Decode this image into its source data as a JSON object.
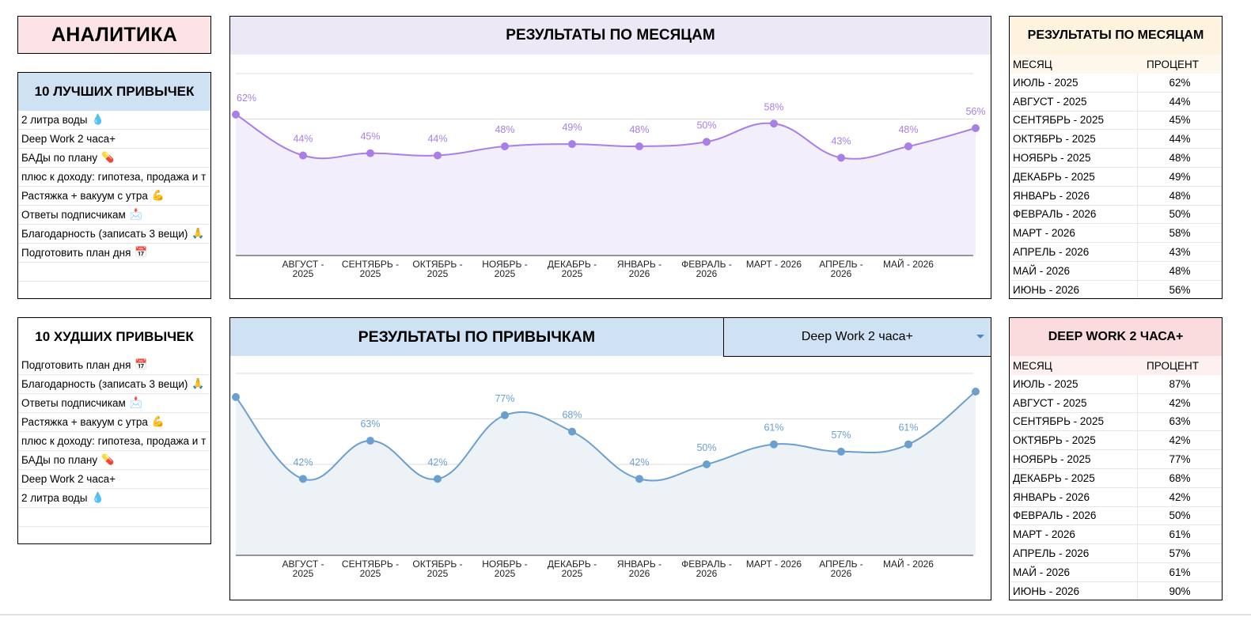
{
  "title": "АНАЛИТИКА",
  "best_habits": {
    "header": "10 ЛУЧШИХ ПРИВЫЧЕК",
    "items": [
      {
        "label": "2 литра воды",
        "emoji": "💧"
      },
      {
        "label": "Deep Work 2 часа+",
        "emoji": ""
      },
      {
        "label": "БАДы по плану",
        "emoji": "💊"
      },
      {
        "label": "плюс к доходу: гипотеза, продажа и т",
        "emoji": ""
      },
      {
        "label": "Растяжка + вакуум с утра",
        "emoji": "💪"
      },
      {
        "label": "Ответы подписчикам",
        "emoji": "📩"
      },
      {
        "label": "Благодарность (записать 3 вещи)",
        "emoji": "🙏"
      },
      {
        "label": "Подготовить план дня",
        "emoji": "📅"
      },
      {
        "label": "",
        "emoji": ""
      },
      {
        "label": "",
        "emoji": ""
      }
    ]
  },
  "worst_habits": {
    "header": "10 ХУДШИХ ПРИВЫЧЕК",
    "items": [
      {
        "label": "Подготовить план дня",
        "emoji": "📅"
      },
      {
        "label": "Благодарность (записать 3 вещи)",
        "emoji": "🙏"
      },
      {
        "label": "Ответы подписчикам",
        "emoji": "📩"
      },
      {
        "label": "Растяжка + вакуум с утра",
        "emoji": "💪"
      },
      {
        "label": "плюс к доходу: гипотеза, продажа и т",
        "emoji": ""
      },
      {
        "label": "БАДы по плану",
        "emoji": "💊"
      },
      {
        "label": "Deep Work 2 часа+",
        "emoji": ""
      },
      {
        "label": "2 литра воды",
        "emoji": "💧"
      },
      {
        "label": "",
        "emoji": ""
      },
      {
        "label": "",
        "emoji": ""
      }
    ]
  },
  "chart_data": [
    {
      "type": "area",
      "title": "РЕЗУЛЬТАТЫ ПО МЕСЯЦАМ",
      "categories": [
        "ИЮЛЬ - 2025",
        "АВГУСТ - 2025",
        "СЕНТЯБРЬ - 2025",
        "ОКТЯБРЬ - 2025",
        "НОЯБРЬ - 2025",
        "ДЕКАБРЬ - 2025",
        "ЯНВАРЬ - 2026",
        "ФЕВРАЛЬ - 2026",
        "МАРТ - 2026",
        "АПРЕЛЬ - 2026",
        "МАЙ - 2026",
        "ИЮНЬ - 2026"
      ],
      "tick_labels": [
        [
          "",
          ""
        ],
        [
          "АВГУСТ -",
          "2025"
        ],
        [
          "СЕНТЯБРЬ -",
          "2025"
        ],
        [
          "ОКТЯБРЬ -",
          "2025"
        ],
        [
          "НОЯБРЬ -",
          "2025"
        ],
        [
          "ДЕКАБРЬ -",
          "2025"
        ],
        [
          "ЯНВАРЬ -",
          "2026"
        ],
        [
          "ФЕВРАЛЬ -",
          "2026"
        ],
        [
          "МАРТ - 2026",
          ""
        ],
        [
          "АПРЕЛЬ -",
          "2026"
        ],
        [
          "МАЙ - 2026",
          ""
        ],
        [
          "",
          ""
        ]
      ],
      "values": [
        62,
        44,
        45,
        44,
        48,
        49,
        48,
        50,
        58,
        43,
        48,
        56
      ],
      "data_labels": [
        "62%",
        "44%",
        "45%",
        "44%",
        "48%",
        "49%",
        "48%",
        "50%",
        "58%",
        "43%",
        "48%",
        "56%"
      ],
      "ylim": [
        0,
        80
      ],
      "grid": true,
      "legend": "none",
      "color": "#a87fe6",
      "fill": "#f3eefc"
    },
    {
      "type": "area",
      "title": "РЕЗУЛЬТАТЫ ПО ПРИВЫЧКАМ",
      "categories": [
        "ИЮЛЬ - 2025",
        "АВГУСТ - 2025",
        "СЕНТЯБРЬ - 2025",
        "ОКТЯБРЬ - 2025",
        "НОЯБРЬ - 2025",
        "ДЕКАБРЬ - 2025",
        "ЯНВАРЬ - 2026",
        "ФЕВРАЛЬ - 2026",
        "МАРТ - 2026",
        "АПРЕЛЬ - 2026",
        "МАЙ - 2026",
        "ИЮНЬ - 2026"
      ],
      "tick_labels": [
        [
          "",
          ""
        ],
        [
          "АВГУСТ -",
          "2025"
        ],
        [
          "СЕНТЯБРЬ -",
          "2025"
        ],
        [
          "ОКТЯБРЬ -",
          "2025"
        ],
        [
          "НОЯБРЬ -",
          "2025"
        ],
        [
          "ДЕКАБРЬ -",
          "2025"
        ],
        [
          "ЯНВАРЬ -",
          "2026"
        ],
        [
          "ФЕВРАЛЬ -",
          "2026"
        ],
        [
          "МАРТ - 2026",
          ""
        ],
        [
          "АПРЕЛЬ -",
          "2026"
        ],
        [
          "МАЙ - 2026",
          ""
        ],
        [
          "",
          ""
        ]
      ],
      "values": [
        87,
        42,
        63,
        42,
        77,
        68,
        42,
        50,
        61,
        57,
        61,
        90
      ],
      "data_labels": [
        "",
        "42%",
        "63%",
        "42%",
        "77%",
        "68%",
        "42%",
        "50%",
        "61%",
        "57%",
        "61%",
        ""
      ],
      "ylim": [
        0,
        100
      ],
      "grid": true,
      "legend": "none",
      "color": "#6a9fd0",
      "fill": "#edf2f7"
    }
  ],
  "habit_selector": {
    "value": "Deep Work 2 часа+"
  },
  "months_table": {
    "header": "РЕЗУЛЬТАТЫ ПО МЕСЯЦАМ",
    "col_month": "МЕСЯЦ",
    "col_pct": "ПРОЦЕНТ",
    "rows": [
      {
        "month": "ИЮЛЬ - 2025",
        "pct": "62%"
      },
      {
        "month": "АВГУСТ - 2025",
        "pct": "44%"
      },
      {
        "month": "СЕНТЯБРЬ - 2025",
        "pct": "45%"
      },
      {
        "month": "ОКТЯБРЬ - 2025",
        "pct": "44%"
      },
      {
        "month": "НОЯБРЬ - 2025",
        "pct": "48%"
      },
      {
        "month": "ДЕКАБРЬ - 2025",
        "pct": "49%"
      },
      {
        "month": "ЯНВАРЬ - 2026",
        "pct": "48%"
      },
      {
        "month": "ФЕВРАЛЬ - 2026",
        "pct": "50%"
      },
      {
        "month": "МАРТ - 2026",
        "pct": "58%"
      },
      {
        "month": "АПРЕЛЬ - 2026",
        "pct": "43%"
      },
      {
        "month": "МАЙ - 2026",
        "pct": "48%"
      },
      {
        "month": "ИЮНЬ - 2026",
        "pct": "56%"
      }
    ]
  },
  "habit_table": {
    "header": "DEEP WORK 2 ЧАСА+",
    "col_month": "МЕСЯЦ",
    "col_pct": "ПРОЦЕНТ",
    "rows": [
      {
        "month": "ИЮЛЬ - 2025",
        "pct": "87%"
      },
      {
        "month": "АВГУСТ - 2025",
        "pct": "42%"
      },
      {
        "month": "СЕНТЯБРЬ - 2025",
        "pct": "63%"
      },
      {
        "month": "ОКТЯБРЬ - 2025",
        "pct": "42%"
      },
      {
        "month": "НОЯБРЬ - 2025",
        "pct": "77%"
      },
      {
        "month": "ДЕКАБРЬ - 2025",
        "pct": "68%"
      },
      {
        "month": "ЯНВАРЬ - 2026",
        "pct": "42%"
      },
      {
        "month": "ФЕВРАЛЬ - 2026",
        "pct": "50%"
      },
      {
        "month": "МАРТ - 2026",
        "pct": "61%"
      },
      {
        "month": "АПРЕЛЬ - 2026",
        "pct": "57%"
      },
      {
        "month": "МАЙ - 2026",
        "pct": "61%"
      },
      {
        "month": "ИЮНЬ - 2026",
        "pct": "90%"
      }
    ]
  }
}
